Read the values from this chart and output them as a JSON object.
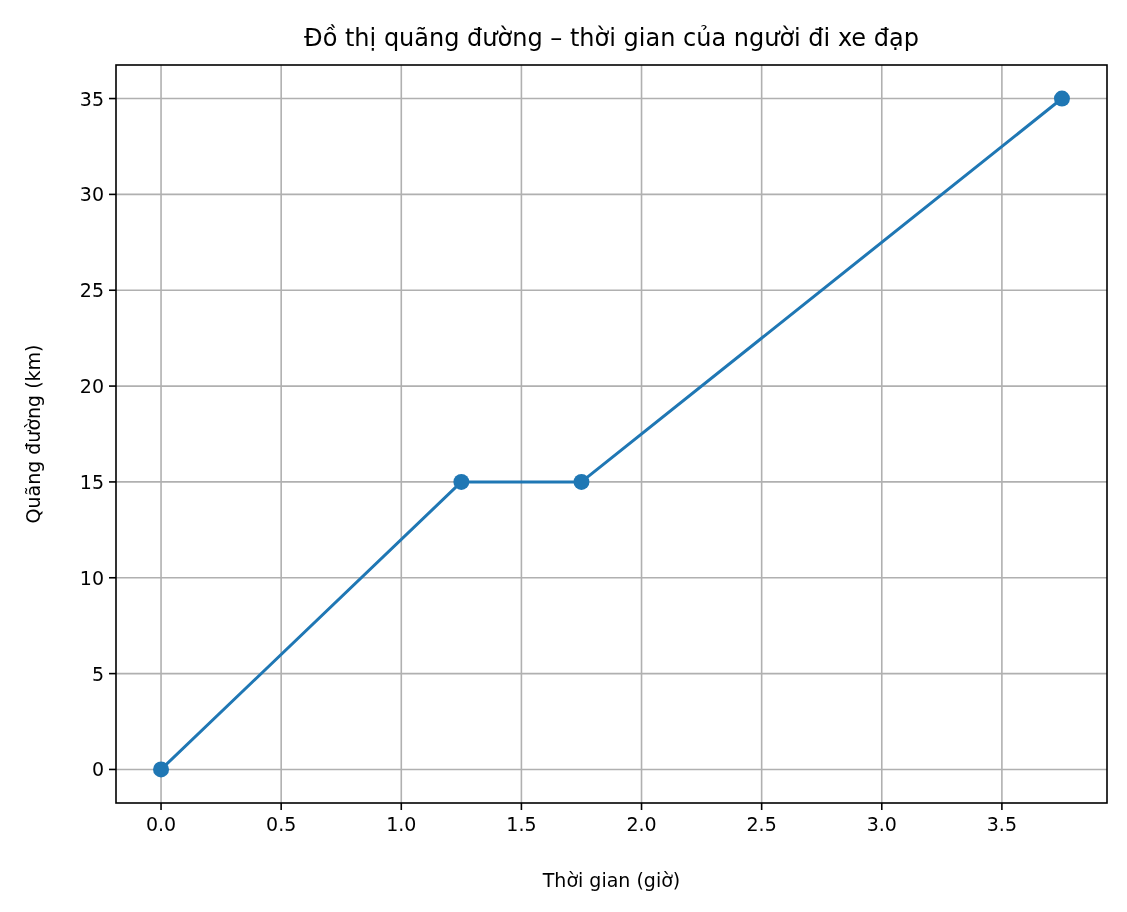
{
  "chart_data": {
    "type": "line",
    "title": "Đồ thị quãng đường – thời gian của người đi xe đạp",
    "xlabel": "Thời gian (giờ)",
    "ylabel": "Quãng đường (km)",
    "x": [
      0,
      1.25,
      1.75,
      3.75
    ],
    "series": [
      {
        "color": "#1f77b4",
        "values": [
          0,
          15,
          15,
          35
        ]
      }
    ],
    "xlim": [
      -0.1875,
      3.9375
    ],
    "xticks": [
      {
        "value": 0,
        "label": "0.0"
      },
      {
        "value": 0.5,
        "label": "0.5"
      },
      {
        "value": 1,
        "label": "1.0"
      },
      {
        "value": 1.5,
        "label": "1.5"
      },
      {
        "value": 2,
        "label": "2.0"
      },
      {
        "value": 2.5,
        "label": "2.5"
      },
      {
        "value": 3,
        "label": "3.0"
      },
      {
        "value": 3.5,
        "label": "3.5"
      }
    ],
    "ylim": [
      -1.75,
      36.75
    ],
    "yticks": [
      0,
      5,
      10,
      15,
      20,
      25,
      30,
      35
    ],
    "grid": true,
    "marker": "circle",
    "line_style": "solid"
  }
}
